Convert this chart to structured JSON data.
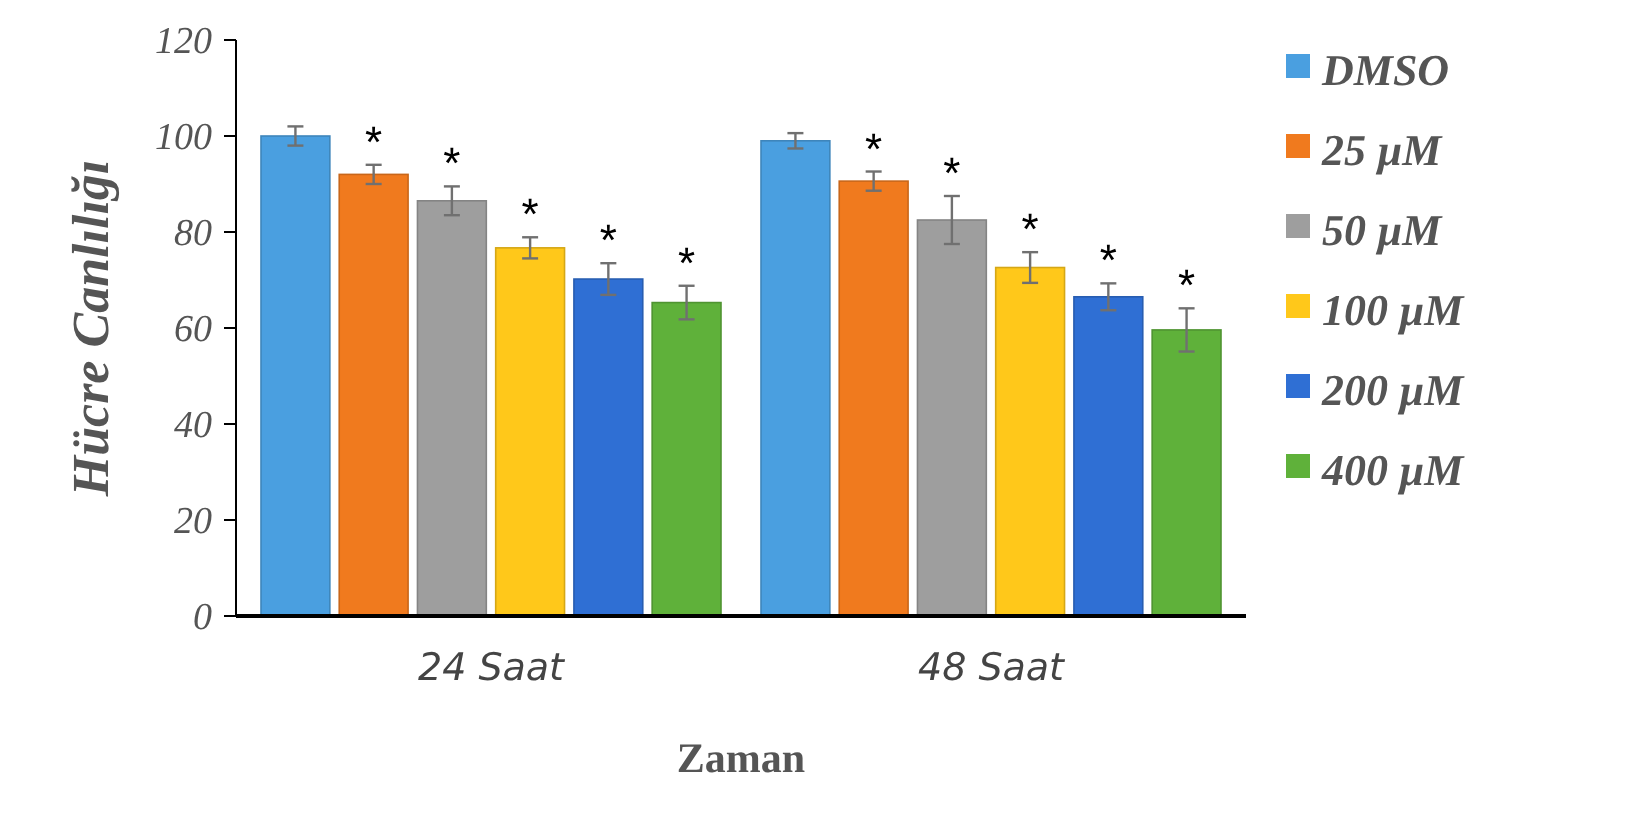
{
  "chart_data": {
    "type": "bar",
    "xlabel": "Zaman",
    "ylabel": "Hücre Canlılığı",
    "categories": [
      "24 Saat",
      "48 Saat"
    ],
    "series": [
      {
        "name": "DMSO",
        "color": "#4a9fe0",
        "values": [
          100,
          99
        ],
        "errors": [
          2,
          1.6
        ]
      },
      {
        "name": "25 µM",
        "color": "#f07a1e",
        "values": [
          92,
          90.6
        ],
        "errors": [
          2,
          2
        ]
      },
      {
        "name": "50 µM",
        "color": "#9e9e9e",
        "values": [
          86.5,
          82.5
        ],
        "errors": [
          3,
          5
        ]
      },
      {
        "name": "100 µM",
        "color": "#ffc81a",
        "values": [
          76.7,
          72.6
        ],
        "errors": [
          2.2,
          3.2
        ]
      },
      {
        "name": "200 µM",
        "color": "#2f6fd4",
        "values": [
          70.2,
          66.5
        ],
        "errors": [
          3.3,
          2.8
        ]
      },
      {
        "name": "400 µM",
        "color": "#5fb13a",
        "values": [
          65.3,
          59.6
        ],
        "errors": [
          3.5,
          4.5
        ]
      }
    ],
    "annotations": [
      "*",
      "*",
      "*",
      "*",
      "*",
      "*",
      "*",
      "*",
      "*",
      "*"
    ],
    "ylim": [
      0,
      120
    ],
    "yticks": [
      0,
      20,
      40,
      60,
      80,
      100,
      120
    ],
    "grid": false,
    "legend": "right"
  }
}
